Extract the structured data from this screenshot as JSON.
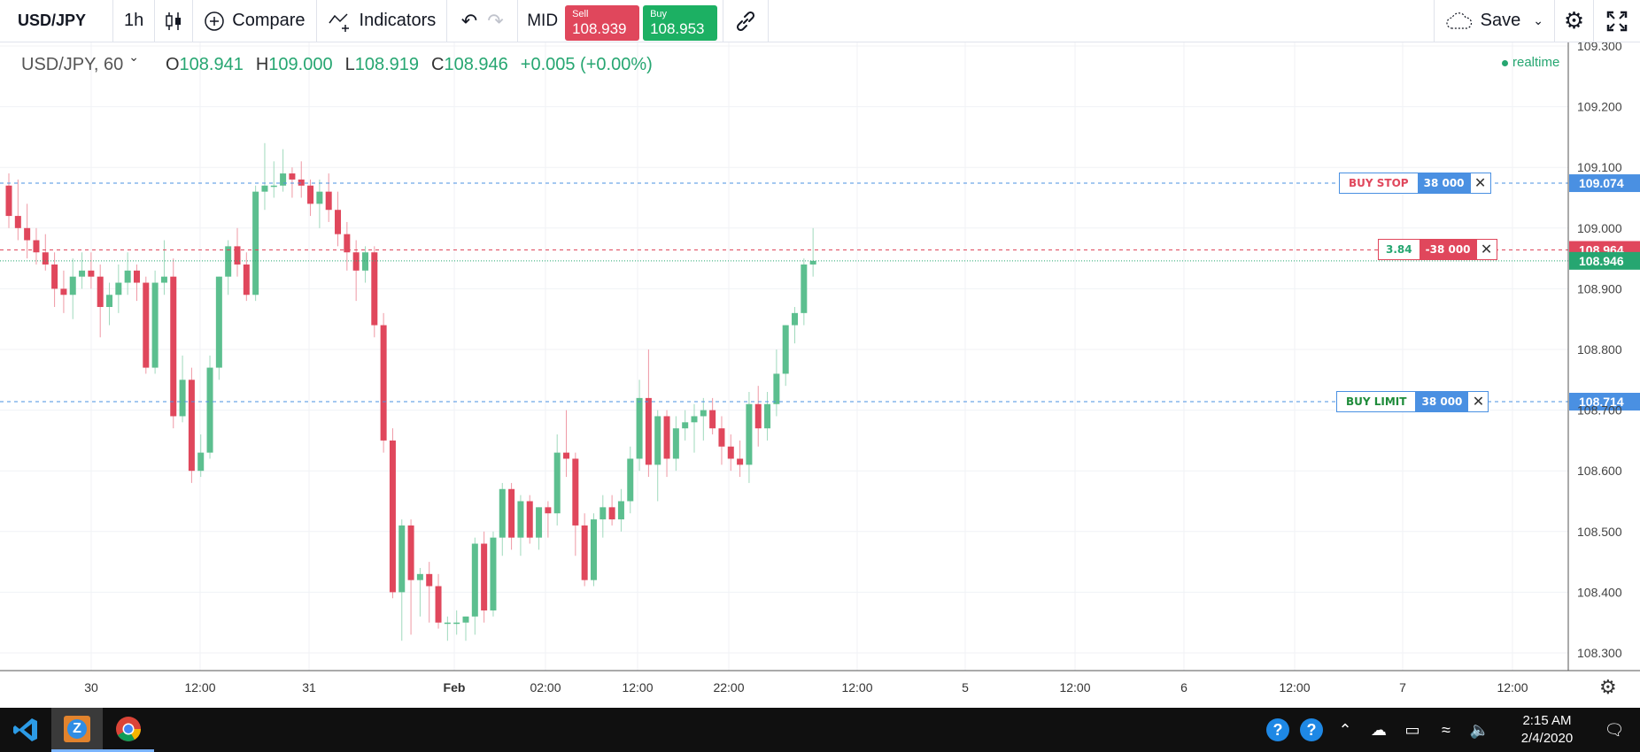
{
  "toolbar": {
    "symbol": "USD/JPY",
    "interval": "1h",
    "compare_label": "Compare",
    "indicators_label": "Indicators",
    "mid_label": "MID",
    "sell": {
      "label": "Sell",
      "price": "108.939"
    },
    "buy": {
      "label": "Buy",
      "price": "108.953"
    },
    "save_label": "Save"
  },
  "legend": {
    "symbol_interval": "USD/JPY, 60",
    "o_label": "O",
    "o_value": "108.941",
    "h_label": "H",
    "h_value": "109.000",
    "l_label": "L",
    "l_value": "108.919",
    "c_label": "C",
    "c_value": "108.946",
    "change": "+0.005 (+0.00%)",
    "realtime": "realtime"
  },
  "orders": {
    "buy_stop": {
      "label": "BUY STOP",
      "qty": "38 000",
      "price": "109.074"
    },
    "position": {
      "pl": "3.84",
      "qty": "-38 000",
      "price": "108.964"
    },
    "buy_limit": {
      "label": "BUY LIMIT",
      "qty": "38 000",
      "price": "108.714"
    },
    "last_price": "108.946"
  },
  "colors": {
    "up": "#5cbf8f",
    "down": "#e0475c",
    "order_line": "#4a90e2",
    "position_line": "#e0475c"
  },
  "chart_data": {
    "type": "candlestick",
    "ylim": [
      108.27,
      109.3
    ],
    "y_ticks": [
      "109.300",
      "109.200",
      "109.100",
      "109.000",
      "108.900",
      "108.800",
      "108.700",
      "108.600",
      "108.500",
      "108.400",
      "108.300"
    ],
    "x_ticks": [
      "30",
      "12:00",
      "31",
      "Feb",
      "02:00",
      "12:00",
      "22:00",
      "12:00",
      "5",
      "12:00",
      "6",
      "12:00",
      "7",
      "12:00"
    ],
    "candles": [
      [
        109.07,
        109.09,
        109.0,
        109.02
      ],
      [
        109.02,
        109.08,
        108.98,
        109.0
      ],
      [
        109.0,
        109.04,
        108.95,
        108.98
      ],
      [
        108.98,
        109.0,
        108.94,
        108.96
      ],
      [
        108.96,
        108.99,
        108.93,
        108.94
      ],
      [
        108.94,
        108.96,
        108.87,
        108.9
      ],
      [
        108.9,
        108.93,
        108.86,
        108.89
      ],
      [
        108.89,
        108.95,
        108.85,
        108.92
      ],
      [
        108.92,
        108.96,
        108.9,
        108.93
      ],
      [
        108.93,
        108.96,
        108.9,
        108.92
      ],
      [
        108.92,
        108.94,
        108.82,
        108.87
      ],
      [
        108.87,
        108.91,
        108.84,
        108.89
      ],
      [
        108.89,
        108.94,
        108.86,
        108.91
      ],
      [
        108.91,
        108.96,
        108.89,
        108.93
      ],
      [
        108.93,
        108.94,
        108.88,
        108.91
      ],
      [
        108.91,
        108.92,
        108.76,
        108.77
      ],
      [
        108.77,
        108.93,
        108.76,
        108.91
      ],
      [
        108.91,
        108.98,
        108.89,
        108.92
      ],
      [
        108.92,
        108.95,
        108.67,
        108.69
      ],
      [
        108.69,
        108.79,
        108.68,
        108.75
      ],
      [
        108.75,
        108.77,
        108.58,
        108.6
      ],
      [
        108.6,
        108.66,
        108.59,
        108.63
      ],
      [
        108.63,
        108.79,
        108.62,
        108.77
      ],
      [
        108.77,
        108.92,
        108.75,
        108.92
      ],
      [
        108.92,
        108.98,
        108.89,
        108.97
      ],
      [
        108.97,
        109.0,
        108.92,
        108.94
      ],
      [
        108.94,
        108.96,
        108.88,
        108.89
      ],
      [
        108.89,
        109.07,
        108.88,
        109.06
      ],
      [
        109.06,
        109.14,
        109.03,
        109.07
      ],
      [
        109.07,
        109.11,
        109.05,
        109.07
      ],
      [
        109.07,
        109.13,
        109.06,
        109.09
      ],
      [
        109.09,
        109.1,
        109.05,
        109.08
      ],
      [
        109.08,
        109.11,
        109.05,
        109.07
      ],
      [
        109.07,
        109.08,
        109.02,
        109.04
      ],
      [
        109.04,
        109.08,
        109.0,
        109.06
      ],
      [
        109.06,
        109.09,
        109.01,
        109.03
      ],
      [
        109.03,
        109.06,
        108.97,
        108.99
      ],
      [
        108.99,
        109.01,
        108.93,
        108.96
      ],
      [
        108.96,
        108.98,
        108.88,
        108.93
      ],
      [
        108.93,
        108.97,
        108.91,
        108.96
      ],
      [
        108.96,
        108.97,
        108.82,
        108.84
      ],
      [
        108.84,
        108.86,
        108.63,
        108.65
      ],
      [
        108.65,
        108.67,
        108.39,
        108.4
      ],
      [
        108.4,
        108.52,
        108.32,
        108.51
      ],
      [
        108.51,
        108.52,
        108.33,
        108.42
      ],
      [
        108.42,
        108.44,
        108.36,
        108.43
      ],
      [
        108.43,
        108.45,
        108.35,
        108.41
      ],
      [
        108.41,
        108.43,
        108.34,
        108.35
      ],
      [
        108.35,
        108.36,
        108.32,
        108.35
      ],
      [
        108.35,
        108.37,
        108.33,
        108.35
      ],
      [
        108.35,
        108.36,
        108.32,
        108.36
      ],
      [
        108.36,
        108.49,
        108.33,
        108.48
      ],
      [
        108.48,
        108.5,
        108.35,
        108.37
      ],
      [
        108.37,
        108.5,
        108.36,
        108.49
      ],
      [
        108.49,
        108.58,
        108.46,
        108.57
      ],
      [
        108.57,
        108.58,
        108.47,
        108.49
      ],
      [
        108.49,
        108.56,
        108.46,
        108.55
      ],
      [
        108.55,
        108.56,
        108.48,
        108.49
      ],
      [
        108.49,
        108.54,
        108.47,
        108.54
      ],
      [
        108.54,
        108.55,
        108.49,
        108.53
      ],
      [
        108.53,
        108.66,
        108.51,
        108.63
      ],
      [
        108.63,
        108.7,
        108.59,
        108.62
      ],
      [
        108.62,
        108.63,
        108.46,
        108.51
      ],
      [
        108.51,
        108.53,
        108.41,
        108.42
      ],
      [
        108.42,
        108.53,
        108.41,
        108.52
      ],
      [
        108.52,
        108.56,
        108.49,
        108.54
      ],
      [
        108.54,
        108.56,
        108.51,
        108.52
      ],
      [
        108.52,
        108.57,
        108.5,
        108.55
      ],
      [
        108.55,
        108.64,
        108.53,
        108.62
      ],
      [
        108.62,
        108.75,
        108.6,
        108.72
      ],
      [
        108.72,
        108.8,
        108.59,
        108.61
      ],
      [
        108.61,
        108.7,
        108.55,
        108.69
      ],
      [
        108.69,
        108.7,
        108.59,
        108.62
      ],
      [
        108.62,
        108.69,
        108.6,
        108.67
      ],
      [
        108.67,
        108.7,
        108.65,
        108.68
      ],
      [
        108.68,
        108.71,
        108.63,
        108.69
      ],
      [
        108.69,
        108.72,
        108.65,
        108.7
      ],
      [
        108.7,
        108.72,
        108.66,
        108.67
      ],
      [
        108.67,
        108.69,
        108.61,
        108.64
      ],
      [
        108.64,
        108.66,
        108.6,
        108.62
      ],
      [
        108.62,
        108.65,
        108.59,
        108.61
      ],
      [
        108.61,
        108.73,
        108.58,
        108.71
      ],
      [
        108.71,
        108.74,
        108.64,
        108.67
      ],
      [
        108.67,
        108.73,
        108.65,
        108.71
      ],
      [
        108.71,
        108.8,
        108.69,
        108.76
      ],
      [
        108.76,
        108.84,
        108.74,
        108.84
      ],
      [
        108.84,
        108.87,
        108.81,
        108.86
      ],
      [
        108.86,
        108.95,
        108.84,
        108.94
      ],
      [
        108.94,
        109.0,
        108.92,
        108.946
      ]
    ]
  },
  "taskbar": {
    "time": "2:15 AM",
    "date": "2/4/2020"
  }
}
